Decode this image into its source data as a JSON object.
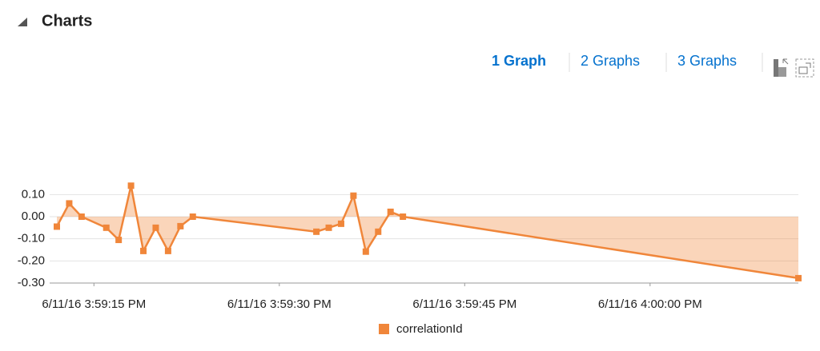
{
  "header": {
    "title": "Charts"
  },
  "tabs": [
    "1 Graph",
    "2 Graphs",
    "3 Graphs"
  ],
  "chart_data": {
    "type": "area",
    "x": [
      "6/11/16 3:59:12 PM",
      "6/11/16 3:59:13 PM",
      "6/11/16 3:59:14 PM",
      "6/11/16 3:59:16 PM",
      "6/11/16 3:59:17 PM",
      "6/11/16 3:59:18 PM",
      "6/11/16 3:59:19 PM",
      "6/11/16 3:59:20 PM",
      "6/11/16 3:59:21 PM",
      "6/11/16 3:59:22 PM",
      "6/11/16 3:59:23 PM",
      "6/11/16 3:59:33 PM",
      "6/11/16 3:59:34 PM",
      "6/11/16 3:59:35 PM",
      "6/11/16 3:59:36 PM",
      "6/11/16 3:59:37 PM",
      "6/11/16 3:59:38 PM",
      "6/11/16 3:59:39 PM",
      "6/11/16 3:59:40 PM",
      "6/11/16 4:00:12 PM"
    ],
    "series": [
      {
        "name": "correlationId",
        "color": "#f0863a",
        "values": [
          -0.045,
          0.06,
          0.0,
          -0.05,
          -0.105,
          0.14,
          -0.155,
          -0.05,
          -0.155,
          -0.043,
          0.0,
          -0.068,
          -0.05,
          -0.032,
          0.095,
          -0.158,
          -0.068,
          0.022,
          0.0,
          -0.278
        ]
      }
    ],
    "xlim": [
      "6/11/16 3:59:12 PM",
      "6/11/16 4:00:12 PM"
    ],
    "xticks": [
      "6/11/16 3:59:15 PM",
      "6/11/16 3:59:30 PM",
      "6/11/16 3:59:45 PM",
      "6/11/16 4:00:00 PM"
    ],
    "ylim": [
      -0.3,
      0.15
    ],
    "yticks": [
      {
        "value": 0.1,
        "label": "0.10"
      },
      {
        "value": 0,
        "label": "0.00"
      },
      {
        "value": -0.1,
        "label": "-0.10"
      },
      {
        "value": -0.2,
        "label": "-0.20"
      },
      {
        "value": -0.3,
        "label": "-0.30"
      }
    ],
    "grid": true
  }
}
